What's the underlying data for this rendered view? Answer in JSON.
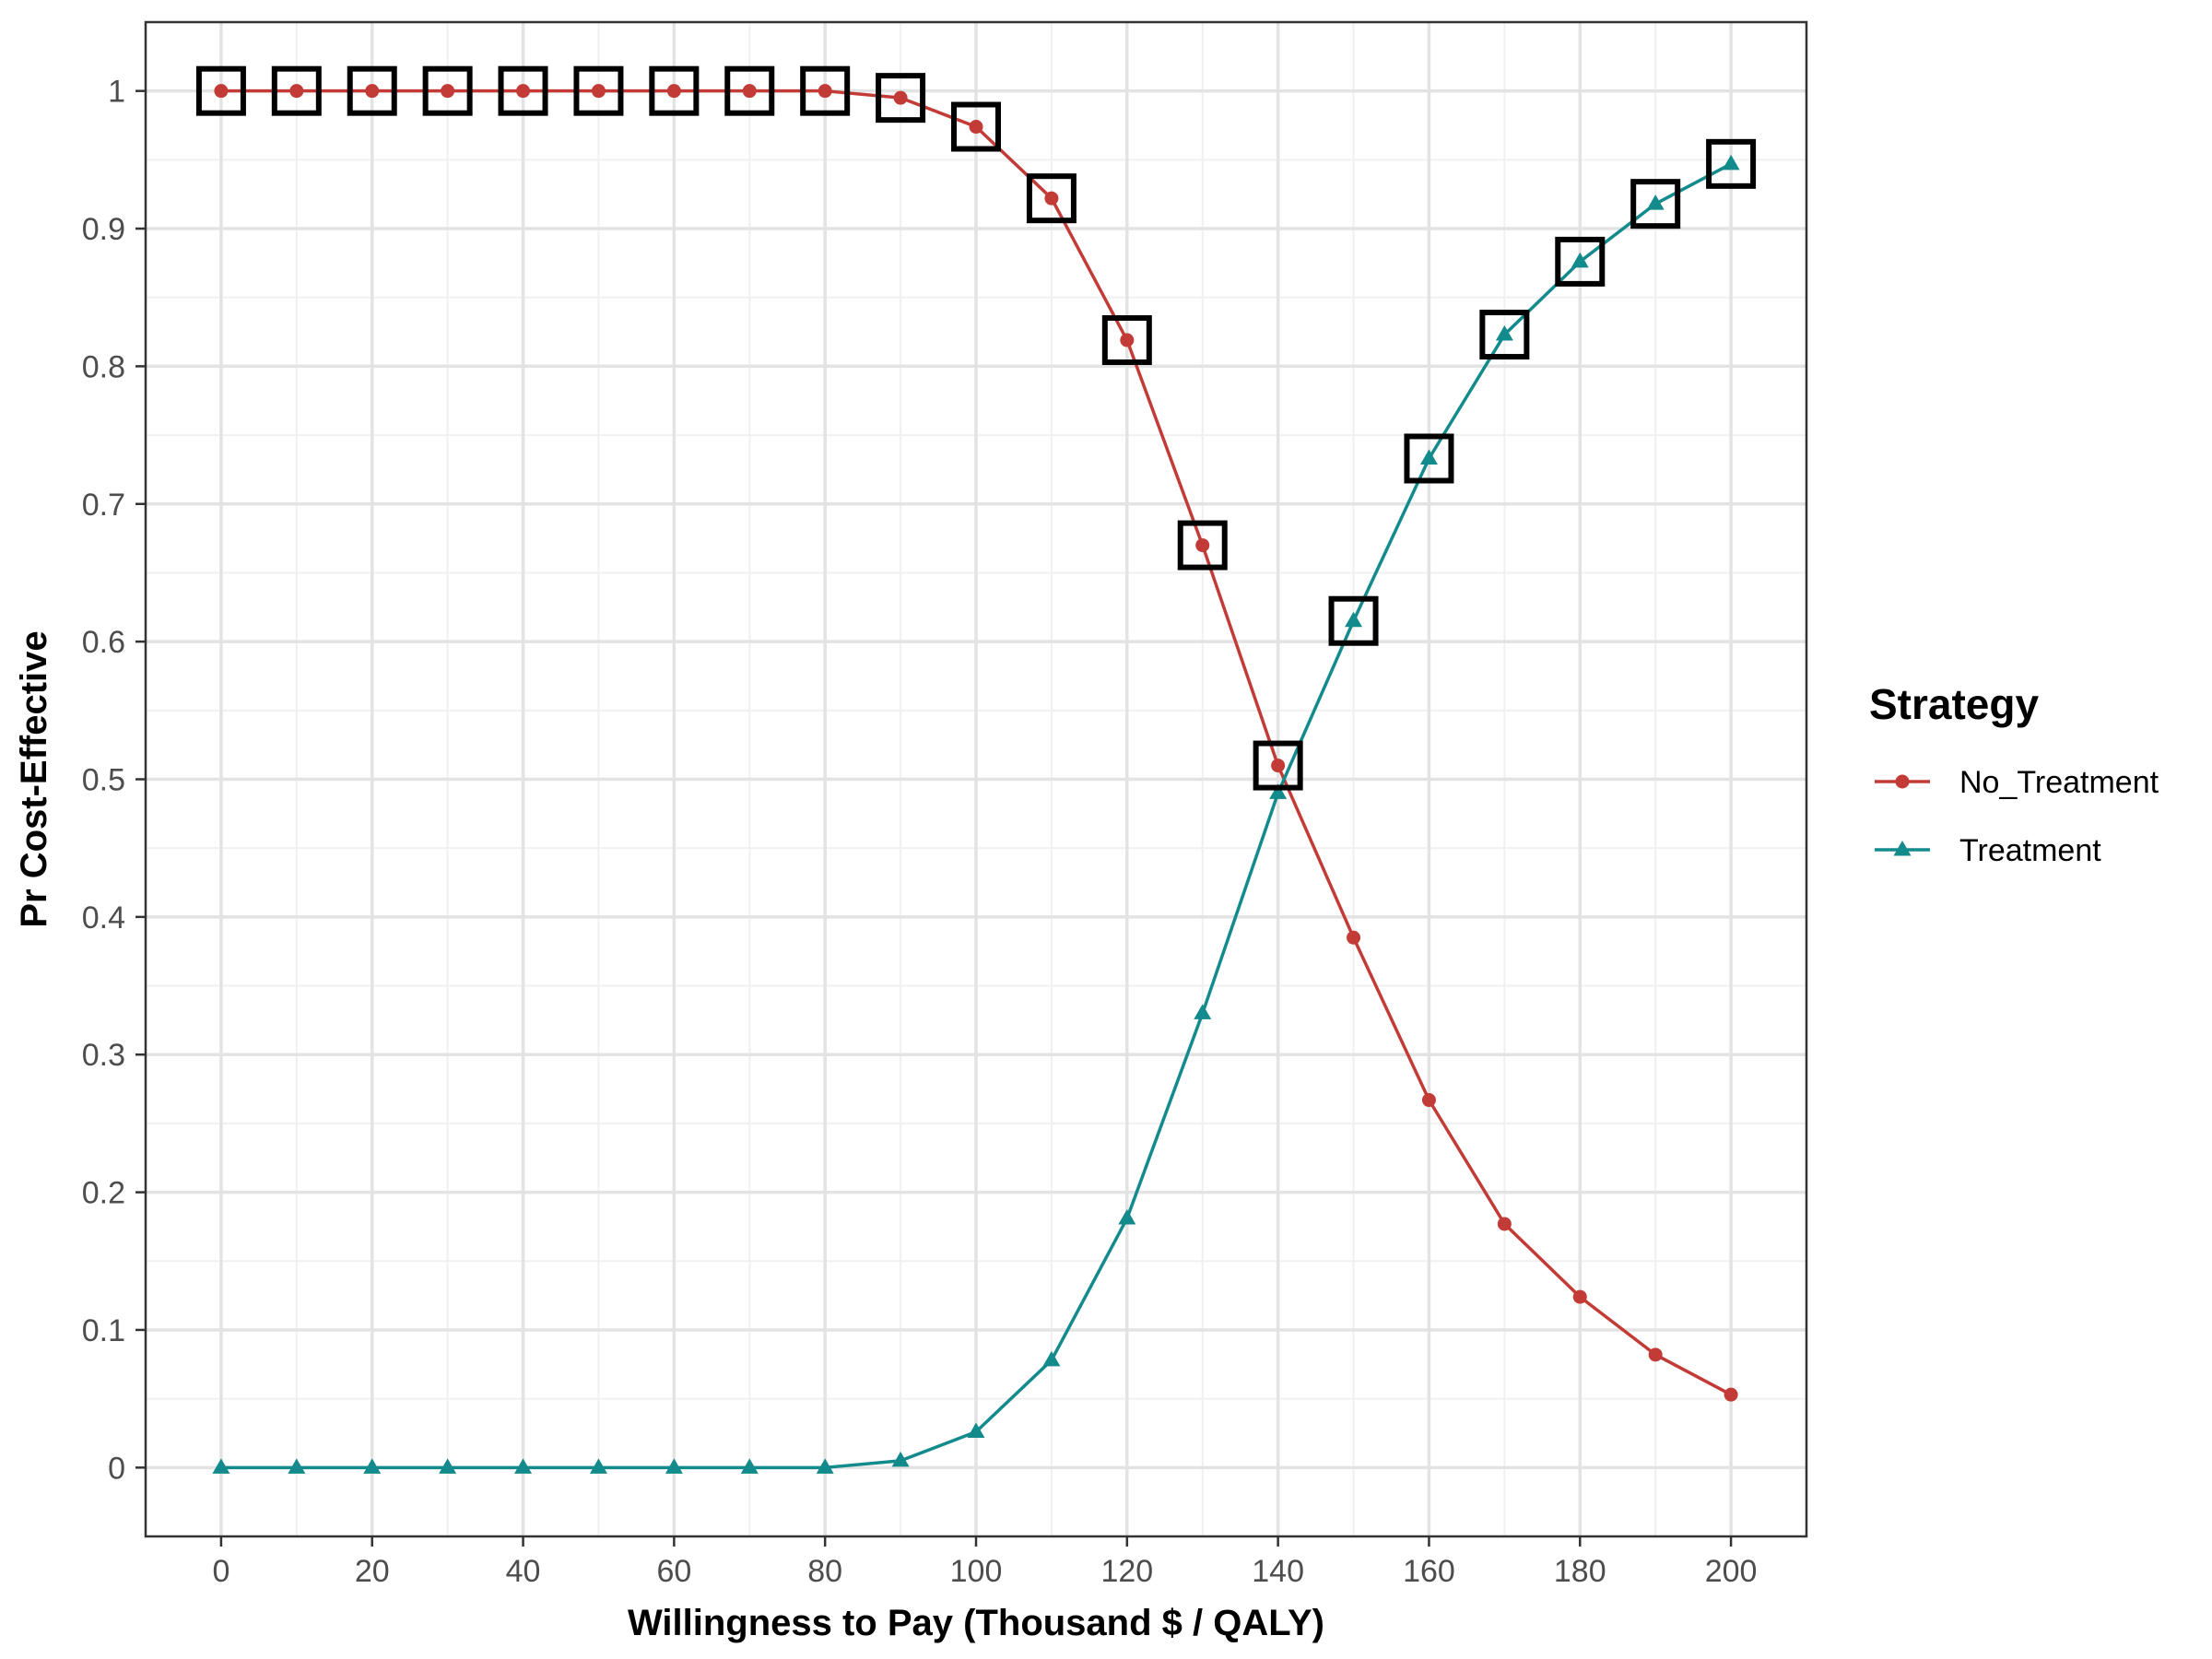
{
  "chart_data": {
    "type": "line",
    "title": "",
    "xlabel": "Willingness to Pay (Thousand $ / QALY)",
    "ylabel": "Pr Cost-Effective",
    "xlim": [
      -10,
      210
    ],
    "ylim": [
      -0.05,
      1.05
    ],
    "x_ticks": [
      0,
      20,
      40,
      60,
      80,
      100,
      120,
      140,
      160,
      180,
      200
    ],
    "y_ticks": [
      0,
      0.1,
      0.2,
      0.3,
      0.4,
      0.5,
      0.6,
      0.7,
      0.8,
      0.9,
      1
    ],
    "x_tick_labels": [
      "0",
      "20",
      "40",
      "60",
      "80",
      "100",
      "120",
      "140",
      "160",
      "180",
      "200"
    ],
    "y_tick_labels": [
      "0",
      "0.1",
      "0.2",
      "0.3",
      "0.4",
      "0.5",
      "0.6",
      "0.7",
      "0.8",
      "0.9",
      "1"
    ],
    "grid": true,
    "legend": {
      "title": "Strategy",
      "position": "right"
    },
    "x": [
      0,
      10,
      20,
      30,
      40,
      50,
      60,
      70,
      80,
      90,
      100,
      110,
      120,
      130,
      140,
      150,
      160,
      170,
      180,
      190,
      200
    ],
    "series": [
      {
        "name": "No_Treatment",
        "color": "#C23B36",
        "marker": "circle",
        "values": [
          1,
          1,
          1,
          1,
          1,
          1,
          1,
          1,
          1,
          0.995,
          0.974,
          0.922,
          0.819,
          0.67,
          0.51,
          0.385,
          0.267,
          0.177,
          0.124,
          0.082,
          0.053
        ]
      },
      {
        "name": "Treatment",
        "color": "#138A8C",
        "marker": "triangle",
        "values": [
          0,
          0,
          0,
          0,
          0,
          0,
          0,
          0,
          0,
          0.005,
          0.026,
          0.078,
          0.181,
          0.33,
          0.49,
          0.615,
          0.733,
          0.823,
          0.876,
          0.918,
          0.947
        ]
      }
    ],
    "frontier": {
      "marker": "square",
      "x": [
        0,
        10,
        20,
        30,
        40,
        50,
        60,
        70,
        80,
        90,
        100,
        110,
        120,
        130,
        140,
        150,
        160,
        170,
        180,
        190,
        200
      ],
      "values": [
        1,
        1,
        1,
        1,
        1,
        1,
        1,
        1,
        1,
        0.995,
        0.974,
        0.922,
        0.819,
        0.67,
        0.51,
        0.615,
        0.733,
        0.823,
        0.876,
        0.918,
        0.947
      ]
    }
  }
}
